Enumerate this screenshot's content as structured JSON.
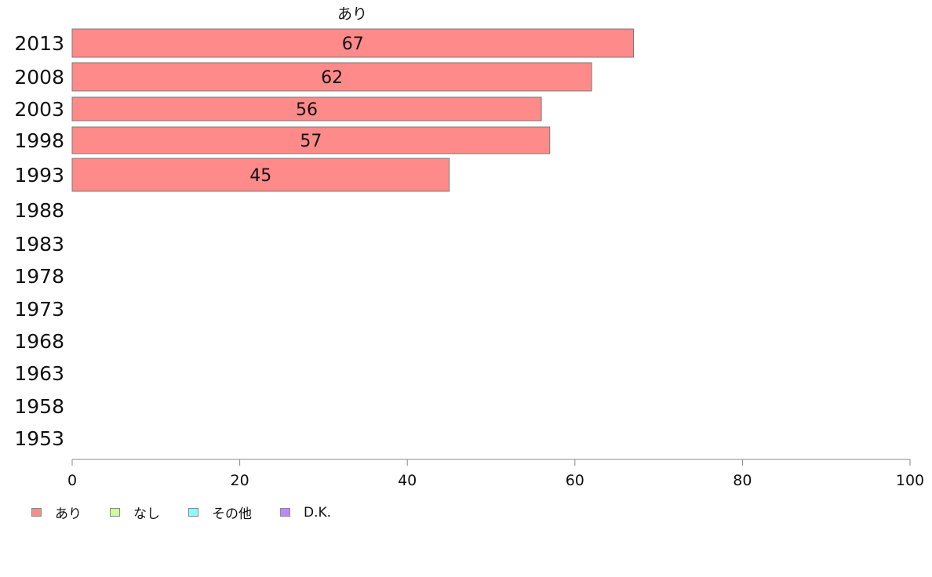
{
  "chart_data": {
    "type": "bar",
    "orientation": "horizontal",
    "title": "あり",
    "categories": [
      "2013",
      "2008",
      "2003",
      "1998",
      "1993",
      "1988",
      "1983",
      "1978",
      "1973",
      "1968",
      "1963",
      "1958",
      "1953"
    ],
    "series": [
      {
        "name": "あり",
        "color": "#ff8a8a",
        "values": [
          67,
          62,
          56,
          57,
          45,
          null,
          null,
          null,
          null,
          null,
          null,
          null,
          null
        ]
      },
      {
        "name": "なし",
        "color": "#ccff99",
        "values": [
          null,
          null,
          null,
          null,
          null,
          null,
          null,
          null,
          null,
          null,
          null,
          null,
          null
        ]
      },
      {
        "name": "その他",
        "color": "#88ffff",
        "values": [
          null,
          null,
          null,
          null,
          null,
          null,
          null,
          null,
          null,
          null,
          null,
          null,
          null
        ]
      },
      {
        "name": "D.K.",
        "color": "#bb88ff",
        "values": [
          null,
          null,
          null,
          null,
          null,
          null,
          null,
          null,
          null,
          null,
          null,
          null,
          null
        ]
      }
    ],
    "data_labels": [
      "67",
      "62",
      "56",
      "57",
      "45"
    ],
    "xlim": [
      0,
      100
    ],
    "xticks": [
      0,
      20,
      40,
      60,
      80,
      100
    ],
    "xlabel": "",
    "ylabel": "",
    "grid": false,
    "legend_position": "bottom-left"
  },
  "legend": {
    "items": [
      {
        "label": "あり",
        "color": "#ff8a8a"
      },
      {
        "label": "なし",
        "color": "#ccff99"
      },
      {
        "label": "その他",
        "color": "#88ffff"
      },
      {
        "label": "D.K.",
        "color": "#bb88ff"
      }
    ]
  }
}
